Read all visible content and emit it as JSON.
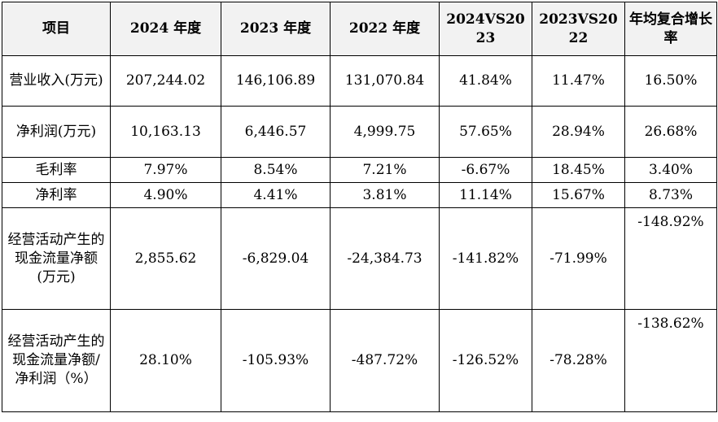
{
  "header": [
    "项目",
    "2024 年度",
    "2023 年度",
    "2022 年度",
    "2024VS2023",
    "2023VS2022",
    "年均复合增长率"
  ],
  "rows": [
    [
      "营业收入(万元)",
      "207,244.02",
      "146,106.89",
      "131,070.84",
      "41.84%",
      "11.47%",
      "16.50%"
    ],
    [
      "净利润(万元)",
      "10,163.13",
      "6,446.57",
      "4,999.75",
      "57.65%",
      "28.94%",
      "26.68%"
    ],
    [
      "毛利率",
      "7.97%",
      "8.54%",
      "7.21%",
      "-6.67%",
      "18.45%",
      "3.40%"
    ],
    [
      "净利率",
      "4.90%",
      "4.41%",
      "3.81%",
      "11.14%",
      "15.67%",
      "8.73%"
    ],
    [
      "经营活动产生的现金流量净额(万元)",
      "2,855.62",
      "-6,829.04",
      "-24,384.73",
      "-141.82%",
      "-71.99%",
      "-148.92%"
    ],
    [
      "经营活动产生的现金流量净额/净利润（%）",
      "28.10%",
      "-105.93%",
      "-487.72%",
      "-126.52%",
      "-78.28%",
      "-138.62%"
    ]
  ]
}
